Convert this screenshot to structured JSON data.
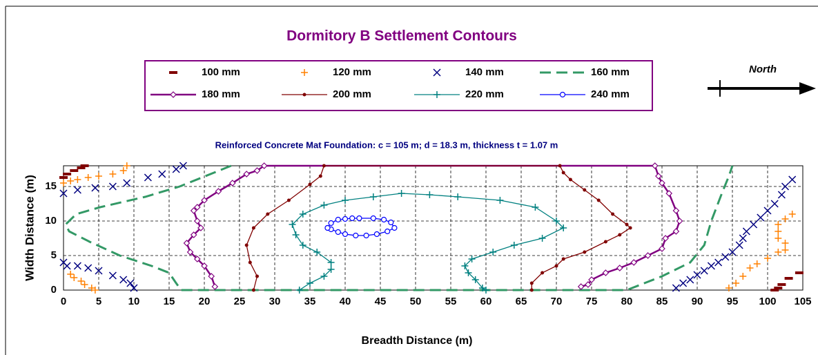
{
  "chart_data": {
    "type": "scatter",
    "title": "Dormitory B Settlement Contours",
    "subtitle": "Reinforced Concrete Mat Foundation:   c = 105 m;  d = 18.3 m, thickness t = 1.07 m",
    "annotation": "North",
    "x_label": "Breadth Distance (m)",
    "y_label": "Width Distance (m)",
    "xlim": [
      0,
      105
    ],
    "ylim": [
      0,
      18
    ],
    "xticks": [
      0,
      5,
      10,
      15,
      20,
      25,
      30,
      35,
      40,
      45,
      50,
      55,
      60,
      65,
      70,
      75,
      80,
      85,
      90,
      95,
      100,
      105
    ],
    "yticks": [
      0,
      5,
      10,
      15
    ],
    "grid": true,
    "series": [
      {
        "name": "100 mm",
        "color": "#800000",
        "marker": "dash",
        "line": null,
        "x": [
          0,
          0.5,
          1.5,
          2.5,
          3,
          null,
          101,
          101.5,
          102,
          103,
          104.5
        ],
        "values": [
          16.3,
          16.8,
          17.3,
          17.7,
          18,
          null,
          0,
          0.3,
          0.8,
          1.7,
          2.5
        ]
      },
      {
        "name": "120 mm",
        "color": "#ff8000",
        "marker": "plus",
        "line": null,
        "x": [
          0,
          1,
          2,
          3.5,
          5,
          7,
          8.5,
          9,
          null,
          1,
          1.5,
          2.5,
          3,
          4,
          4.5,
          null,
          94.5,
          95.5,
          96.5,
          97.5,
          98.5,
          100,
          101.5,
          102.5,
          102.5,
          101.5,
          101.5,
          101.5,
          102.5,
          103.5
        ],
        "values": [
          15.5,
          15.8,
          16,
          16.3,
          16.5,
          16.8,
          17.3,
          18,
          null,
          2.3,
          1.8,
          1.3,
          0.8,
          0.3,
          0,
          null,
          0.3,
          1,
          2,
          3.2,
          3.8,
          4.6,
          5.5,
          5.8,
          6.8,
          7.5,
          8.5,
          9.5,
          10.3,
          11
        ]
      },
      {
        "name": "140 mm",
        "color": "#000080",
        "marker": "x",
        "line": null,
        "x": [
          0,
          2,
          4.5,
          7,
          9,
          12,
          14,
          16,
          17,
          null,
          0,
          0.5,
          2,
          3.5,
          5,
          7,
          8.5,
          9.5,
          10,
          null,
          87,
          88,
          89,
          90,
          91,
          92,
          93,
          94,
          95,
          96,
          96.5,
          97,
          98,
          99,
          100,
          101,
          102,
          102.5,
          103.5
        ],
        "values": [
          14,
          14.5,
          14.8,
          15,
          15.5,
          16.3,
          16.8,
          17.5,
          18,
          null,
          4,
          3.5,
          3.5,
          3.2,
          2.8,
          2.1,
          1.5,
          1,
          0.3,
          null,
          0.3,
          1,
          1.5,
          2.2,
          2.8,
          3.5,
          4,
          4.8,
          5.5,
          6.5,
          7.5,
          8.5,
          9.5,
          10.5,
          11.5,
          12.5,
          13.8,
          15,
          16
        ]
      },
      {
        "name": "160 mm",
        "color": "#339966",
        "marker": null,
        "line": "dashed",
        "x": [
          23.8,
          16.5,
          11.6,
          5.2,
          1.8,
          0.3,
          0.8,
          3.7,
          8,
          12.5,
          15,
          16,
          16.7,
          80,
          85,
          89,
          91,
          92,
          93.5,
          94.5,
          95
        ],
        "values": [
          18,
          15,
          13.5,
          12,
          11,
          9.5,
          8.5,
          7,
          5,
          3.5,
          2.5,
          1,
          0,
          0,
          2,
          4,
          6.5,
          10,
          14,
          16.5,
          18
        ]
      },
      {
        "name": "180 mm",
        "color": "#800080",
        "marker": "diamond",
        "line": "thick",
        "x": [
          21.5,
          21,
          20,
          19,
          18,
          17.5,
          18.5,
          19.5,
          19,
          18.5,
          19,
          20,
          22,
          24,
          26,
          27.5,
          28.5,
          84,
          84.5,
          85,
          86,
          87,
          87.5,
          87,
          85.5,
          85,
          83,
          81,
          79,
          77,
          75,
          74.5,
          73.5
        ],
        "values": [
          0.5,
          2,
          3.5,
          4.5,
          5.5,
          6.8,
          8,
          9,
          10,
          11.5,
          12,
          13,
          14.3,
          15.5,
          16.8,
          17.3,
          18,
          18,
          16.5,
          15.5,
          14,
          11.5,
          10,
          8.5,
          7.5,
          6,
          5,
          4,
          3.2,
          2.5,
          1.5,
          0.8,
          0.5
        ]
      },
      {
        "name": "200 mm",
        "color": "#800000",
        "marker": "dot",
        "line": "solid",
        "x": [
          27,
          27.5,
          26.5,
          26,
          27,
          29,
          32,
          35,
          36.5,
          37,
          70.5,
          71,
          72,
          74,
          76,
          78,
          80,
          80.5,
          79,
          77,
          74,
          71,
          70,
          68,
          66.5,
          66.5
        ],
        "values": [
          0,
          2,
          4,
          6.5,
          9,
          11,
          13,
          15.3,
          16.5,
          18,
          18,
          17,
          16,
          14.5,
          13,
          11,
          9.5,
          9,
          8,
          7,
          5.5,
          4.5,
          3.5,
          2.5,
          1,
          0
        ]
      },
      {
        "name": "220 mm",
        "color": "#008080",
        "marker": "plus",
        "line": "solid",
        "x": [
          33.5,
          35,
          37,
          38,
          38,
          36,
          34,
          33,
          32.5,
          34,
          37,
          40,
          44,
          48,
          52,
          56,
          62,
          67,
          70,
          71,
          68,
          64,
          61,
          58,
          57,
          57.5,
          58.5,
          59.5,
          60
        ],
        "values": [
          0,
          1,
          2,
          3,
          4,
          5.5,
          6.5,
          8,
          9.5,
          11,
          12.3,
          13,
          13.5,
          14,
          13.8,
          13.5,
          13,
          12,
          10,
          9,
          7.5,
          6.5,
          5.5,
          4.5,
          3.5,
          2.5,
          1.5,
          0.3,
          0
        ]
      },
      {
        "name": "240 mm",
        "color": "#0000ff",
        "marker": "circle",
        "line": "solid",
        "x": [
          37.5,
          38,
          39,
          40,
          41,
          42,
          44,
          45.5,
          46.5,
          47,
          46,
          44.5,
          43,
          41.5,
          40,
          39,
          38,
          37.5
        ],
        "values": [
          9,
          9.7,
          10.2,
          10.3,
          10.4,
          10.4,
          10.4,
          10.2,
          9.8,
          9,
          8.5,
          8.1,
          7.9,
          7.9,
          8.1,
          8.4,
          8.8,
          9
        ]
      }
    ]
  }
}
